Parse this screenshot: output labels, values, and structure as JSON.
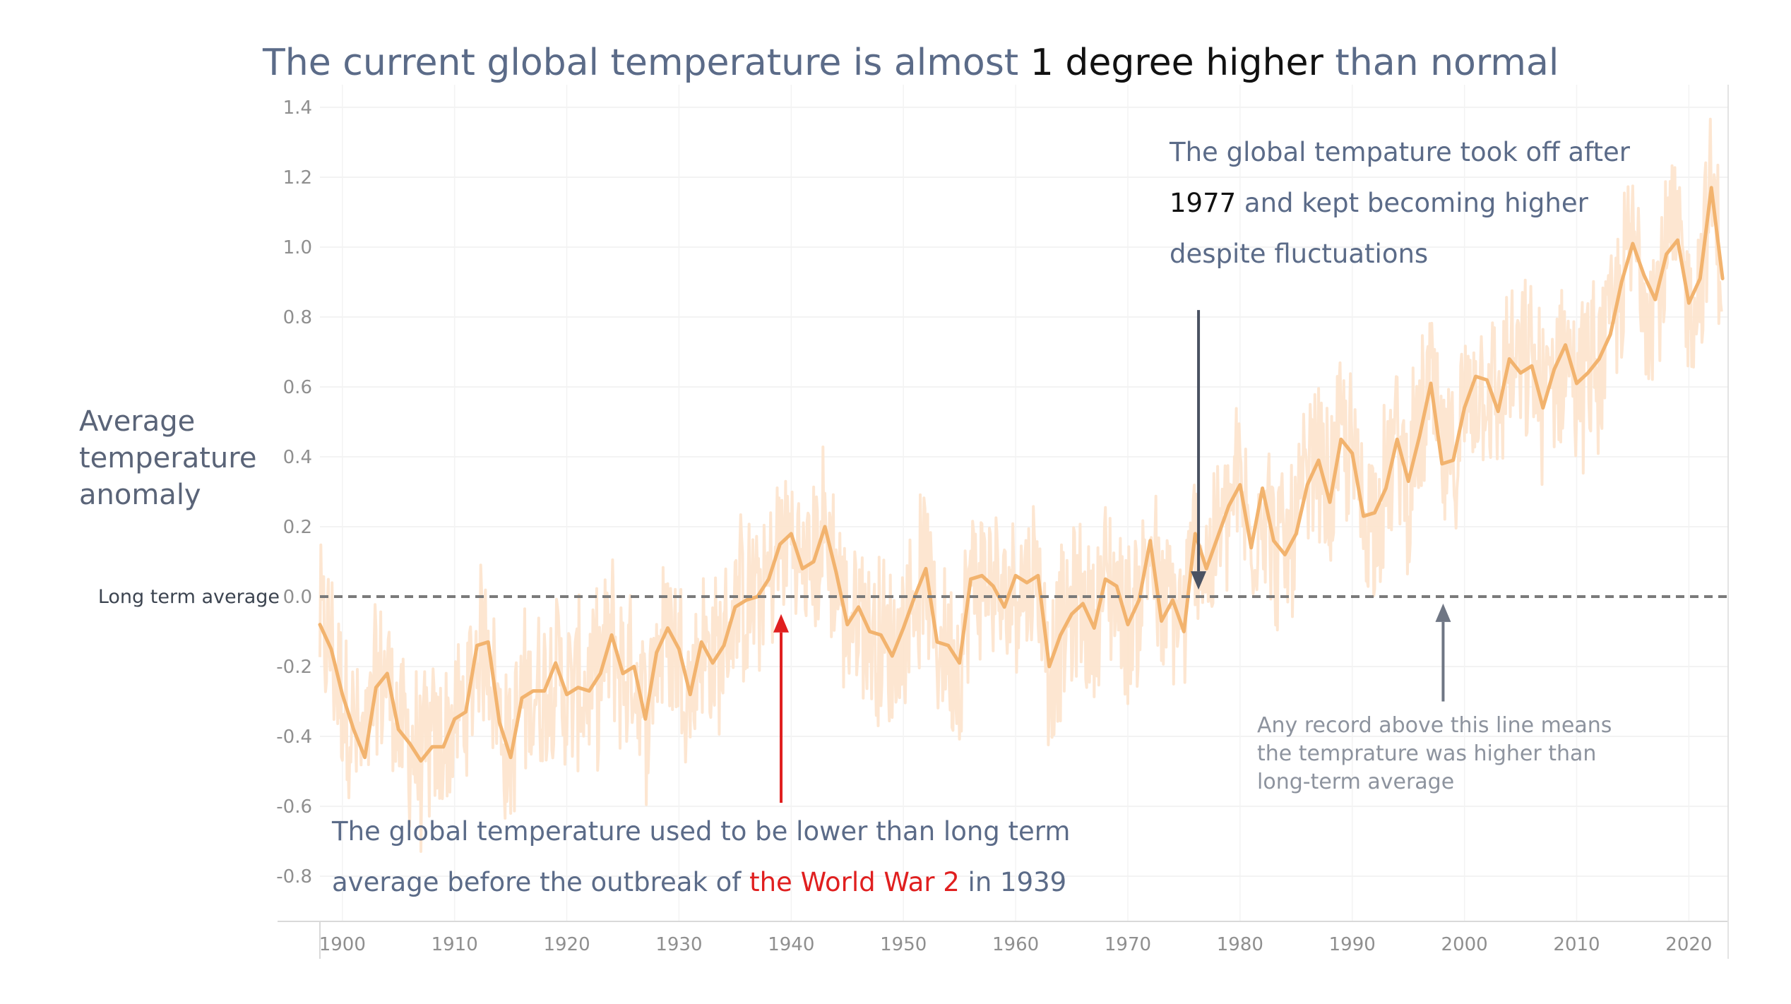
{
  "chart_data": {
    "type": "line",
    "title_parts": [
      {
        "text": "The current global temperature is almost ",
        "highlight": false
      },
      {
        "text": "1 degree higher",
        "highlight": true
      },
      {
        "text": " than normal",
        "highlight": false
      }
    ],
    "ylabel": [
      "Average",
      "temperature",
      "anomaly"
    ],
    "xlabel": "",
    "ylim": [
      -0.9,
      1.45
    ],
    "xlim": [
      1898,
      2023.5
    ],
    "y_ticks": [
      -0.8,
      -0.6,
      -0.4,
      -0.2,
      0.0,
      0.2,
      0.4,
      0.6,
      0.8,
      1.0,
      1.2,
      1.4
    ],
    "y_tick_labels": [
      "-0.8",
      "-0.6",
      "-0.4",
      "-0.2",
      "0.0",
      "0.2",
      "0.4",
      "0.6",
      "0.8",
      "1.0",
      "1.2",
      "1.4"
    ],
    "x_ticks": [
      1900,
      1910,
      1920,
      1930,
      1940,
      1950,
      1960,
      1970,
      1980,
      1990,
      2000,
      2010,
      2020
    ],
    "x_tick_labels": [
      "1900",
      "1910",
      "1920",
      "1930",
      "1940",
      "1950",
      "1960",
      "1970",
      "1980",
      "1990",
      "2000",
      "2010",
      "2020"
    ],
    "grid": true,
    "reference_line": {
      "y": 0.0,
      "label": "Long term average",
      "style": "dashed"
    },
    "series": [
      {
        "role": "annual-average",
        "color": "#f2b36e",
        "x": [
          1898,
          1899,
          1900,
          1901,
          1902,
          1903,
          1904,
          1905,
          1906,
          1907,
          1908,
          1909,
          1910,
          1911,
          1912,
          1913,
          1914,
          1915,
          1916,
          1917,
          1918,
          1919,
          1920,
          1921,
          1922,
          1923,
          1924,
          1925,
          1926,
          1927,
          1928,
          1929,
          1930,
          1931,
          1932,
          1933,
          1934,
          1935,
          1936,
          1937,
          1938,
          1939,
          1940,
          1941,
          1942,
          1943,
          1944,
          1945,
          1946,
          1947,
          1948,
          1949,
          1950,
          1951,
          1952,
          1953,
          1954,
          1955,
          1956,
          1957,
          1958,
          1959,
          1960,
          1961,
          1962,
          1963,
          1964,
          1965,
          1966,
          1967,
          1968,
          1969,
          1970,
          1971,
          1972,
          1973,
          1974,
          1975,
          1976,
          1977,
          1978,
          1979,
          1980,
          1981,
          1982,
          1983,
          1984,
          1985,
          1986,
          1987,
          1988,
          1989,
          1990,
          1991,
          1992,
          1993,
          1994,
          1995,
          1996,
          1997,
          1998,
          1999,
          2000,
          2001,
          2002,
          2003,
          2004,
          2005,
          2006,
          2007,
          2008,
          2009,
          2010,
          2011,
          2012,
          2013,
          2014,
          2015,
          2016,
          2017,
          2018,
          2019,
          2020,
          2021,
          2022,
          2023
        ],
        "y": [
          -0.08,
          -0.15,
          -0.28,
          -0.38,
          -0.46,
          -0.26,
          -0.22,
          -0.38,
          -0.42,
          -0.47,
          -0.43,
          -0.43,
          -0.35,
          -0.33,
          -0.14,
          -0.13,
          -0.36,
          -0.46,
          -0.29,
          -0.27,
          -0.27,
          -0.19,
          -0.28,
          -0.26,
          -0.27,
          -0.22,
          -0.11,
          -0.22,
          -0.2,
          -0.35,
          -0.16,
          -0.09,
          -0.15,
          -0.28,
          -0.13,
          -0.19,
          -0.14,
          -0.03,
          -0.01,
          0.0,
          0.05,
          0.15,
          0.18,
          0.08,
          0.1,
          0.2,
          0.07,
          -0.08,
          -0.03,
          -0.1,
          -0.11,
          -0.17,
          -0.09,
          0.0,
          0.08,
          -0.13,
          -0.14,
          -0.19,
          0.05,
          0.06,
          0.03,
          -0.03,
          0.06,
          0.04,
          0.06,
          -0.2,
          -0.11,
          -0.05,
          -0.02,
          -0.09,
          0.05,
          0.03,
          -0.08,
          -0.01,
          0.16,
          -0.07,
          -0.01,
          -0.1,
          0.18,
          0.08,
          0.17,
          0.26,
          0.32,
          0.14,
          0.31,
          0.16,
          0.12,
          0.18,
          0.32,
          0.39,
          0.27,
          0.45,
          0.41,
          0.23,
          0.24,
          0.31,
          0.45,
          0.33,
          0.46,
          0.61,
          0.38,
          0.39,
          0.54,
          0.63,
          0.62,
          0.53,
          0.68,
          0.64,
          0.66,
          0.54,
          0.65,
          0.72,
          0.61,
          0.64,
          0.68,
          0.75,
          0.9,
          1.01,
          0.92,
          0.85,
          0.98,
          1.02,
          0.84,
          0.91,
          1.17,
          0.91
        ]
      }
    ],
    "monthly_noise_color": "#fde3cc",
    "annotations": {
      "top_right_lines": [
        [
          {
            "text": "The global tempature took off after",
            "style": "main"
          }
        ],
        [
          {
            "text": "1977",
            "style": "dark"
          },
          {
            "text": " and kept becoming higher",
            "style": "main"
          }
        ],
        [
          {
            "text": "despite fluctuations",
            "style": "main"
          }
        ]
      ],
      "bottom_left_lines": [
        [
          {
            "text": "The global temperature used to be lower than long term",
            "style": "main"
          }
        ],
        [
          {
            "text": "average before the outbreak of ",
            "style": "main"
          },
          {
            "text": "the World War 2",
            "style": "red"
          },
          {
            "text": " in 1939",
            "style": "main"
          }
        ]
      ],
      "right_small_lines": [
        "Any record above this line means",
        "the temprature was higher than",
        "long-term average"
      ],
      "arrows": [
        {
          "name": "arrow-1977",
          "color": "#4a5262",
          "x": 1976.3,
          "y_from": 0.82,
          "y_to": 0.02
        },
        {
          "name": "arrow-1939",
          "color": "#e01f1f",
          "x": 1939.1,
          "y_from": -0.59,
          "y_to": -0.05
        },
        {
          "name": "arrow-average",
          "color": "#6f7684",
          "x": 1998.1,
          "y_from": -0.3,
          "y_to": -0.02
        }
      ]
    }
  }
}
